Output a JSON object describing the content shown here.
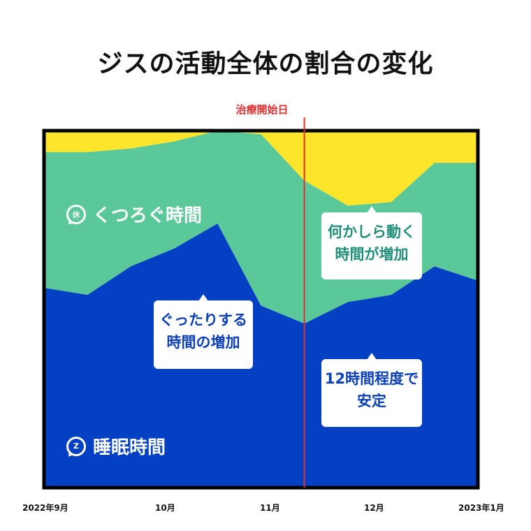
{
  "title": "ジスの活動全体の割合の変化",
  "marker": {
    "label": "治療開始日",
    "color": "#e03030",
    "x": 3
  },
  "labels": {
    "relax_area": "くつろぐ時間",
    "relax_icon_text": "休",
    "sleep_area": "睡眠時間",
    "sleep_icon_text": "Z"
  },
  "callouts": {
    "relax_increase": [
      "何かしら動く",
      "時間が増加"
    ],
    "sleep_increase": [
      "ぐったりする",
      "時間の増加"
    ],
    "sleep_stable": [
      "12時間程度で",
      "安定"
    ]
  },
  "chart_data": {
    "type": "area",
    "stacked": true,
    "normalized": true,
    "x": [
      0,
      0.5,
      1,
      1.5,
      2,
      2.5,
      3,
      3.5,
      4,
      4.5,
      5
    ],
    "x_ticks": [
      {
        "x": 0,
        "label": "2022年9月"
      },
      {
        "x": 1,
        "label": "10月"
      },
      {
        "x": 2,
        "label": "11月"
      },
      {
        "x": 3,
        "label": "12月"
      },
      {
        "x": 4,
        "label": "2023年1月"
      }
    ],
    "series": [
      {
        "name": "睡眠時間",
        "color": "#0440c4",
        "values": [
          0.56,
          0.54,
          0.62,
          0.67,
          0.74,
          0.51,
          0.46,
          0.52,
          0.54,
          0.62,
          0.58
        ]
      },
      {
        "name": "くつろぐ時間",
        "color": "#5bc89a",
        "values": [
          0.38,
          0.4,
          0.33,
          0.3,
          0.26,
          0.48,
          0.4,
          0.27,
          0.26,
          0.29,
          0.33
        ]
      },
      {
        "name": "",
        "color": "#fde52b",
        "values": [
          0.06,
          0.06,
          0.05,
          0.03,
          0.0,
          0.01,
          0.14,
          0.21,
          0.2,
          0.09,
          0.09
        ]
      }
    ],
    "ylim": [
      0,
      1
    ],
    "grid": false
  },
  "colors": {
    "frame": "#000000",
    "callout_text_teal": "#1f8f78",
    "callout_text_blue": "#0b3fb8"
  }
}
